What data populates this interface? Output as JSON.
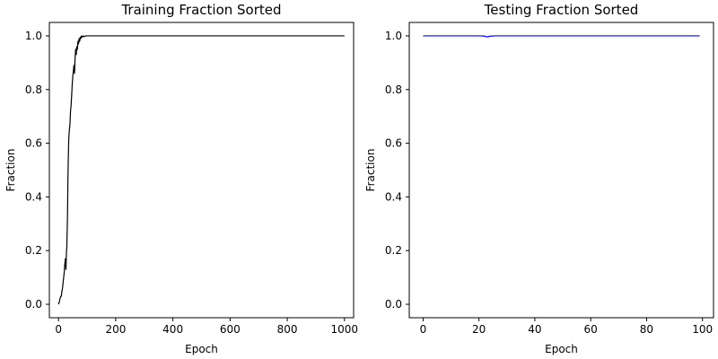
{
  "chart_data": [
    {
      "type": "line",
      "title": "Training Fraction Sorted",
      "xlabel": "Epoch",
      "ylabel": "Fraction",
      "xlim": [
        -32,
        1032
      ],
      "ylim": [
        -0.05,
        1.05
      ],
      "xticks": [
        0,
        200,
        400,
        600,
        800,
        1000
      ],
      "yticks": [
        0.0,
        0.2,
        0.4,
        0.6,
        0.8,
        1.0
      ],
      "xtick_labels": [
        "0",
        "200",
        "400",
        "600",
        "800",
        "1000"
      ],
      "ytick_labels": [
        "0.0",
        "0.2",
        "0.4",
        "0.6",
        "0.8",
        "1.0"
      ],
      "grid": false,
      "series": [
        {
          "color": "#000000",
          "x": [
            0,
            3,
            5,
            8,
            10,
            12,
            14,
            16,
            18,
            20,
            22,
            24,
            26,
            28,
            29,
            30,
            31,
            32,
            33,
            34,
            35,
            36,
            38,
            40,
            42,
            44,
            46,
            48,
            50,
            52,
            54,
            56,
            58,
            60,
            62,
            64,
            66,
            68,
            70,
            72,
            74,
            76,
            78,
            80,
            83,
            86,
            90,
            95,
            100,
            110,
            120,
            150,
            200,
            300,
            400,
            500,
            600,
            700,
            800,
            900,
            1000
          ],
          "y": [
            0.0,
            0.01,
            0.02,
            0.03,
            0.03,
            0.05,
            0.06,
            0.08,
            0.1,
            0.12,
            0.15,
            0.17,
            0.13,
            0.2,
            0.21,
            0.26,
            0.3,
            0.38,
            0.47,
            0.53,
            0.58,
            0.62,
            0.65,
            0.67,
            0.72,
            0.74,
            0.78,
            0.82,
            0.85,
            0.87,
            0.89,
            0.86,
            0.92,
            0.95,
            0.93,
            0.96,
            0.95,
            0.98,
            0.97,
            0.99,
            0.98,
            0.995,
            0.99,
            1.0,
            0.995,
            1.0,
            0.997,
            1.0,
            1.0,
            1.0,
            1.0,
            1.0,
            1.0,
            1.0,
            1.0,
            1.0,
            1.0,
            1.0,
            1.0,
            1.0,
            1.0
          ]
        }
      ]
    },
    {
      "type": "line",
      "title": "Testing Fraction Sorted",
      "xlabel": "Epoch",
      "ylabel": "Fraction",
      "xlim": [
        -4.95,
        103.95
      ],
      "ylim": [
        -0.05,
        1.05
      ],
      "xticks": [
        0,
        20,
        40,
        60,
        80,
        100
      ],
      "yticks": [
        0.0,
        0.2,
        0.4,
        0.6,
        0.8,
        1.0
      ],
      "xtick_labels": [
        "0",
        "20",
        "40",
        "60",
        "80",
        "100"
      ],
      "ytick_labels": [
        "0.0",
        "0.2",
        "0.4",
        "0.6",
        "0.8",
        "1.0"
      ],
      "grid": false,
      "series": [
        {
          "color": "#0000ff",
          "x": [
            0,
            10,
            20,
            22,
            23,
            24,
            26,
            40,
            60,
            80,
            99
          ],
          "y": [
            1.0,
            1.0,
            1.0,
            0.999,
            0.996,
            0.999,
            1.0,
            1.0,
            1.0,
            1.0,
            1.0
          ]
        }
      ]
    }
  ]
}
